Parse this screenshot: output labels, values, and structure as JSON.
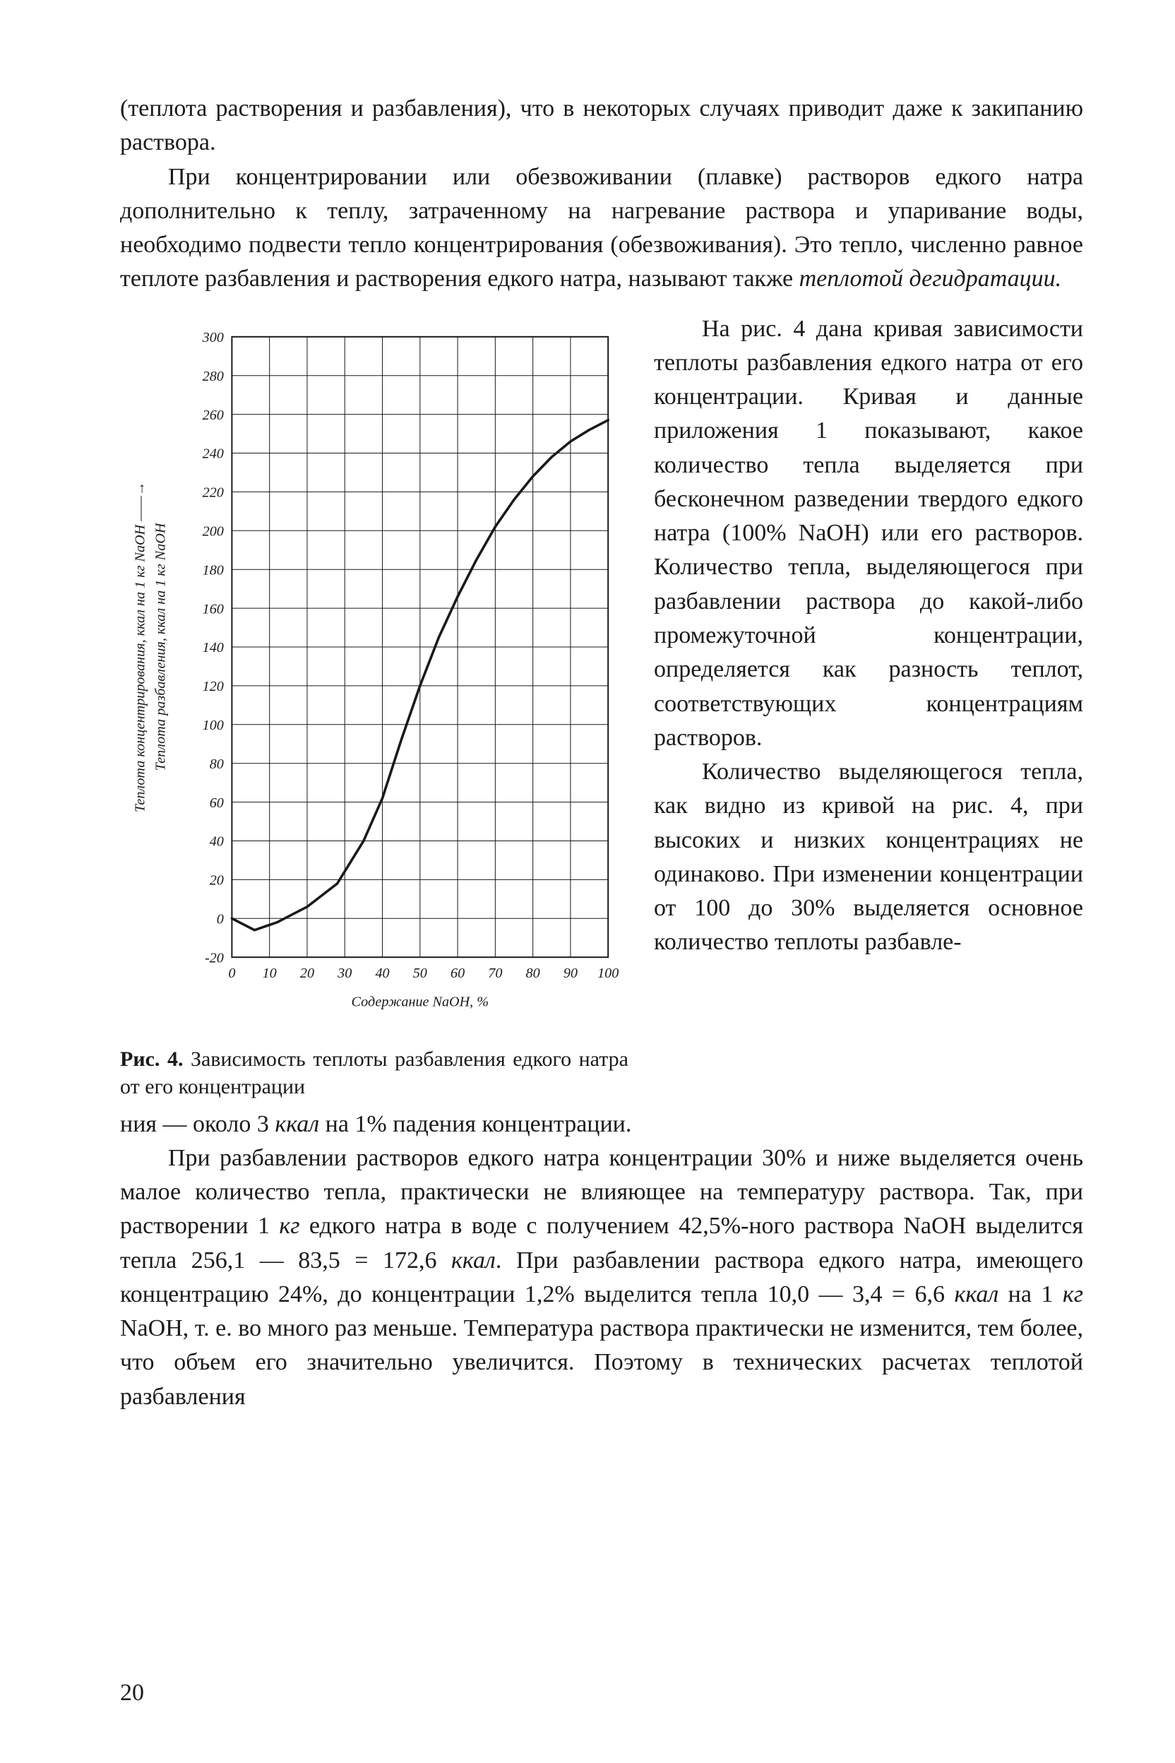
{
  "page_number": "20",
  "paragraphs": {
    "p1": "(теплота растворения и разбавления), что в некоторых случаях приводит даже к закипанию раствора.",
    "p2_a": "При концентрировании или обезвоживании (плавке) растворов едкого натра дополнительно к теплу, затраченному на нагревание раствора и упаривание воды, необходимо подвести тепло концентрирования (обезвоживания). Это тепло, численно равное теплоте разбавления и растворения едкого натра, называют также ",
    "p2_i": "теплотой дегидратации.",
    "p3": "На рис. 4 дана кривая зависимости теплоты разбавления едкого натра от его концентрации. Кривая и данные приложения 1 показывают, какое количество тепла выделяется при бесконечном разведении твердого едкого натра (100% NaOH) или его растворов. Количество тепла, выделяющегося при разбавлении раствора до какой-либо промежуточной концентрации, определяется как разность теплот, соответствующих концентрациям растворов.",
    "p4": "Количество выделяющегося тепла, как видно из кривой на рис. 4, при высоких и низких концентрациях не одинаково. При изменении концентрации от 100 до 30% выделяется основное количество теплоты разбавле-",
    "p5_a": "ния — около 3 ",
    "p5_i1": "ккал",
    "p5_b": " на 1% падения концентрации.",
    "p6_a": "При разбавлении растворов едкого натра концентрации 30% и ниже выделяется очень малое количество тепла, практически не влияющее на температуру раствора. Так, при растворении 1 ",
    "p6_i1": "кг",
    "p6_b": " едкого натра в воде с получением 42,5%-ного раствора NaOH выделится тепла 256,1 — 83,5 = 172,6 ",
    "p6_i2": "ккал",
    "p6_c": ". При разбавлении раствора едкого натра, имеющего концентрацию 24%, до концентрации 1,2% выделится тепла 10,0 — 3,4 = 6,6 ",
    "p6_i3": "ккал",
    "p6_d": " на 1 ",
    "p6_i4": "кг",
    "p6_e": " NaOH, т. е. во много раз меньше. Температура раствора практически не изменится, тем более, что объем его значительно увеличится. Поэтому в технических расчетах теплотой разбавления"
  },
  "figure_caption_a": "Рис. 4. ",
  "figure_caption_b": "Зависимость теплоты разбавления едкого натра от его концентрации",
  "chart": {
    "type": "line",
    "background_color": "#ffffff",
    "grid_color": "#1a1a1a",
    "line_color": "#1a1a1a",
    "line_width": 2.5,
    "xlim": [
      0,
      100
    ],
    "ylim": [
      -20,
      300
    ],
    "xtick_step": 10,
    "ytick_step": 20,
    "xlabel": "Содержание NaOH, %",
    "ylabel_line1": "Теплота концентрирования, ккал на 1 кг NaOH ——→",
    "ylabel_line2": "Теплота разбавления, ккал на 1 кг NaOH",
    "xticks": [
      0,
      10,
      20,
      30,
      40,
      50,
      60,
      70,
      80,
      90,
      100
    ],
    "yticks": [
      -20,
      0,
      20,
      40,
      60,
      80,
      100,
      120,
      140,
      160,
      180,
      200,
      220,
      240,
      260,
      280,
      300
    ],
    "data": [
      {
        "x": 0,
        "y": 0
      },
      {
        "x": 6,
        "y": -6
      },
      {
        "x": 12,
        "y": -2
      },
      {
        "x": 20,
        "y": 6
      },
      {
        "x": 28,
        "y": 18
      },
      {
        "x": 35,
        "y": 40
      },
      {
        "x": 40,
        "y": 62
      },
      {
        "x": 45,
        "y": 92
      },
      {
        "x": 50,
        "y": 120
      },
      {
        "x": 55,
        "y": 145
      },
      {
        "x": 60,
        "y": 166
      },
      {
        "x": 65,
        "y": 185
      },
      {
        "x": 70,
        "y": 202
      },
      {
        "x": 75,
        "y": 216
      },
      {
        "x": 80,
        "y": 228
      },
      {
        "x": 85,
        "y": 238
      },
      {
        "x": 90,
        "y": 246
      },
      {
        "x": 95,
        "y": 252
      },
      {
        "x": 100,
        "y": 257
      }
    ],
    "title_fontsize": 14,
    "label_fontsize": 14,
    "tick_fontsize": 14
  }
}
